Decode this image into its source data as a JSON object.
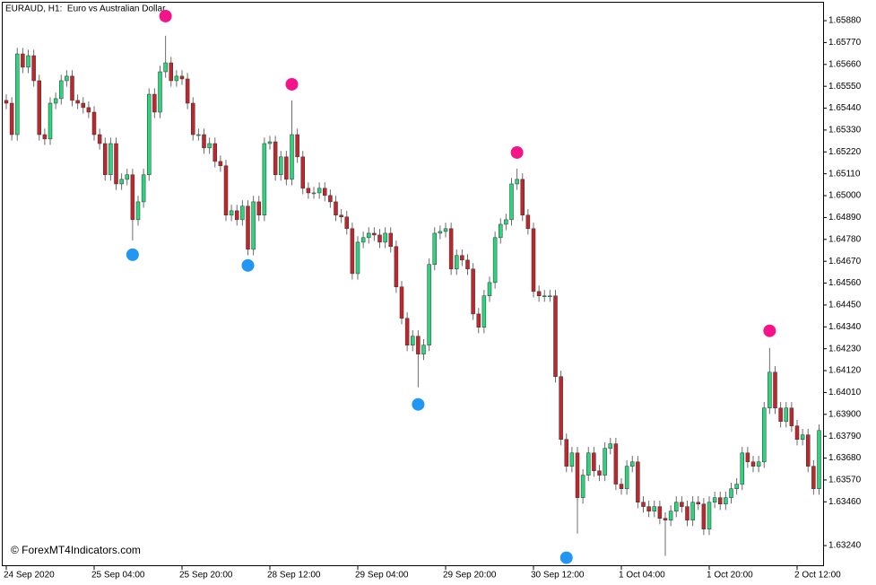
{
  "chart_data": {
    "type": "candlestick",
    "title": "EURAUD, H1:  Euro vs Australian Dollar",
    "watermark": "© ForexMT4Indicators.com",
    "categories": [
      "24 Sep 2020",
      null,
      null,
      null,
      null,
      null,
      null,
      null,
      null,
      null,
      null,
      null,
      null,
      null,
      null,
      null,
      "25 Sep 04:00",
      null,
      null,
      null,
      null,
      null,
      null,
      null,
      null,
      null,
      null,
      null,
      null,
      null,
      null,
      null,
      "25 Sep 20:00",
      null,
      null,
      null,
      null,
      null,
      null,
      null,
      null,
      null,
      null,
      null,
      null,
      null,
      null,
      null,
      "28 Sep 12:00",
      null,
      null,
      null,
      null,
      null,
      null,
      null,
      null,
      null,
      null,
      null,
      null,
      null,
      null,
      null,
      "29 Sep 04:00",
      null,
      null,
      null,
      null,
      null,
      null,
      null,
      null,
      null,
      null,
      null,
      null,
      null,
      null,
      null,
      "29 Sep 20:00",
      null,
      null,
      null,
      null,
      null,
      null,
      null,
      null,
      null,
      null,
      null,
      null,
      null,
      null,
      null,
      "30 Sep 12:00",
      null,
      null,
      null,
      null,
      null,
      null,
      null,
      null,
      null,
      null,
      null,
      null,
      null,
      null,
      null,
      "1 Oct 04:00",
      null,
      null,
      null,
      null,
      null,
      null,
      null,
      null,
      null,
      null,
      null,
      null,
      null,
      null,
      null,
      "1 Oct 20:00",
      null,
      null,
      null,
      null,
      null,
      null,
      null,
      null,
      null,
      null,
      null,
      null,
      null,
      null,
      null,
      "2 Oct 12:00",
      null,
      null,
      null,
      null
    ],
    "open": [
      1.65479,
      1.65465,
      1.65307,
      1.65713,
      1.65646,
      1.65704,
      1.65578,
      1.65307,
      1.65285,
      1.65465,
      1.65488,
      1.65578,
      1.65601,
      1.65479,
      1.65465,
      1.65443,
      1.6542,
      1.65307,
      1.65262,
      1.65105,
      1.65262,
      1.65059,
      1.65082,
      1.65105,
      1.64879,
      1.64969,
      1.65105,
      1.6551,
      1.6542,
      1.65623,
      1.65668,
      1.65578,
      1.65601,
      1.65587,
      1.65465,
      1.65307,
      1.65307,
      1.6524,
      1.65262,
      1.65172,
      1.6515,
      1.64902,
      1.64924,
      1.64879,
      1.64947,
      1.6473,
      1.64969,
      1.64902,
      1.65262,
      1.65271,
      1.65105,
      1.65195,
      1.65082,
      1.65307,
      1.65195,
      1.65037,
      1.65014,
      1.65014,
      1.65037,
      1.65001,
      1.64969,
      1.64902,
      1.64893,
      1.64834,
      1.64608,
      1.64766,
      1.64789,
      1.64811,
      1.64802,
      1.64766,
      1.64811,
      1.64744,
      1.64541,
      1.64383,
      1.64248,
      1.64293,
      1.64203,
      1.64248,
      1.64654,
      1.64811,
      1.6482,
      1.64834,
      1.64631,
      1.64699,
      1.64676,
      1.64631,
      1.64405,
      1.64338,
      1.64496,
      1.64563,
      1.64789,
      1.64856,
      1.64879,
      1.65059,
      1.65082,
      1.64902,
      1.64834,
      1.64518,
      1.64496,
      1.64496,
      1.64496,
      1.6409,
      1.63774,
      1.63639,
      1.63706,
      1.63481,
      1.63594,
      1.63706,
      1.63616,
      1.63594,
      1.63729,
      1.63752,
      1.63549,
      1.63526,
      1.63639,
      1.63661,
      1.63458,
      1.63436,
      1.63413,
      1.63436,
      1.63377,
      1.63368,
      1.63413,
      1.63458,
      1.63436,
      1.63368,
      1.63458,
      1.63449,
      1.63323,
      1.63458,
      1.63481,
      1.63449,
      1.63481,
      1.63526,
      1.63549,
      1.63706,
      1.63661,
      1.63639,
      1.63661,
      1.63932,
      1.64112,
      1.63932,
      1.63864,
      1.63932,
      1.63842,
      1.63774,
      1.63797,
      1.63639,
      1.63526
    ],
    "high": [
      1.65509,
      1.65495,
      1.65743,
      1.65743,
      1.65734,
      1.65734,
      1.65608,
      1.65337,
      1.65495,
      1.65518,
      1.65608,
      1.65631,
      1.65631,
      1.65509,
      1.65495,
      1.65473,
      1.6545,
      1.65337,
      1.65292,
      1.65292,
      1.65292,
      1.65112,
      1.65135,
      1.65135,
      1.64999,
      1.65135,
      1.6554,
      1.6554,
      1.65653,
      1.65804,
      1.65698,
      1.65631,
      1.65631,
      1.65617,
      1.65495,
      1.65337,
      1.65337,
      1.65292,
      1.65292,
      1.65202,
      1.6518,
      1.64954,
      1.64954,
      1.64977,
      1.64977,
      1.64999,
      1.64999,
      1.65292,
      1.65301,
      1.65301,
      1.65225,
      1.65225,
      1.65479,
      1.65337,
      1.65225,
      1.65067,
      1.65044,
      1.65067,
      1.65067,
      1.65031,
      1.64999,
      1.64932,
      1.64923,
      1.64864,
      1.64796,
      1.64819,
      1.64841,
      1.64841,
      1.64832,
      1.64841,
      1.64841,
      1.64774,
      1.64571,
      1.64413,
      1.64323,
      1.64323,
      1.64278,
      1.64684,
      1.64841,
      1.6485,
      1.64864,
      1.64864,
      1.64729,
      1.64729,
      1.64706,
      1.64661,
      1.64435,
      1.64526,
      1.64593,
      1.64819,
      1.64886,
      1.64909,
      1.65089,
      1.65136,
      1.65112,
      1.64932,
      1.64864,
      1.64548,
      1.64526,
      1.64526,
      1.64526,
      1.6412,
      1.63804,
      1.63736,
      1.63736,
      1.63624,
      1.63736,
      1.63736,
      1.63646,
      1.63759,
      1.63782,
      1.63782,
      1.63579,
      1.63669,
      1.63691,
      1.63691,
      1.63488,
      1.63466,
      1.63466,
      1.63466,
      1.63407,
      1.63443,
      1.63488,
      1.63488,
      1.63466,
      1.63488,
      1.63488,
      1.63479,
      1.63488,
      1.63511,
      1.63511,
      1.63511,
      1.63556,
      1.63579,
      1.63736,
      1.63736,
      1.63691,
      1.63691,
      1.63962,
      1.64234,
      1.64142,
      1.63962,
      1.63962,
      1.63962,
      1.63872,
      1.63827,
      1.63827,
      1.63669,
      1.63849
    ],
    "low": [
      1.65435,
      1.65277,
      1.65277,
      1.65616,
      1.65616,
      1.65548,
      1.65277,
      1.65255,
      1.65255,
      1.65435,
      1.65458,
      1.65548,
      1.65449,
      1.65435,
      1.65413,
      1.6539,
      1.65277,
      1.65232,
      1.65075,
      1.65075,
      1.65029,
      1.65029,
      1.65052,
      1.64775,
      1.64849,
      1.64939,
      1.65075,
      1.6539,
      1.6539,
      1.65593,
      1.65548,
      1.65548,
      1.65557,
      1.65435,
      1.65277,
      1.65277,
      1.6521,
      1.6521,
      1.65142,
      1.6512,
      1.64872,
      1.64872,
      1.64849,
      1.64849,
      1.647,
      1.647,
      1.64872,
      1.64872,
      1.65232,
      1.65075,
      1.65075,
      1.65052,
      1.65052,
      1.65165,
      1.65007,
      1.64984,
      1.64984,
      1.64984,
      1.64971,
      1.64939,
      1.64872,
      1.64863,
      1.64804,
      1.64578,
      1.64578,
      1.64736,
      1.64759,
      1.64772,
      1.64736,
      1.64736,
      1.64714,
      1.64511,
      1.64353,
      1.64218,
      1.64218,
      1.64036,
      1.64173,
      1.64218,
      1.64624,
      1.64781,
      1.6479,
      1.64601,
      1.64601,
      1.64646,
      1.64601,
      1.64375,
      1.64308,
      1.64308,
      1.64466,
      1.64533,
      1.64759,
      1.64826,
      1.64849,
      1.65029,
      1.64872,
      1.64804,
      1.64488,
      1.64466,
      1.64466,
      1.64466,
      1.6406,
      1.63744,
      1.63609,
      1.63609,
      1.633,
      1.63451,
      1.63564,
      1.63586,
      1.63564,
      1.63564,
      1.63699,
      1.63519,
      1.63496,
      1.63496,
      1.63609,
      1.63428,
      1.63406,
      1.63383,
      1.63383,
      1.63347,
      1.63188,
      1.63338,
      1.63383,
      1.63406,
      1.63338,
      1.63338,
      1.63419,
      1.63293,
      1.63293,
      1.63428,
      1.63419,
      1.63419,
      1.63451,
      1.63496,
      1.63519,
      1.63631,
      1.63609,
      1.63609,
      1.63631,
      1.63902,
      1.63902,
      1.63834,
      1.63834,
      1.63812,
      1.63744,
      1.63744,
      1.63609,
      1.63496,
      1.63496
    ],
    "close": [
      1.65465,
      1.65307,
      1.65713,
      1.65646,
      1.65704,
      1.65578,
      1.65307,
      1.65285,
      1.65465,
      1.65488,
      1.65578,
      1.65601,
      1.65479,
      1.65465,
      1.65443,
      1.6542,
      1.65307,
      1.65262,
      1.65105,
      1.65262,
      1.65059,
      1.65082,
      1.65105,
      1.64879,
      1.64969,
      1.65105,
      1.6551,
      1.6542,
      1.65623,
      1.65668,
      1.65578,
      1.65601,
      1.65587,
      1.65465,
      1.65307,
      1.65307,
      1.6524,
      1.65262,
      1.65172,
      1.6515,
      1.64902,
      1.64924,
      1.64879,
      1.64947,
      1.6473,
      1.64969,
      1.64902,
      1.65262,
      1.65271,
      1.65105,
      1.65195,
      1.65082,
      1.65307,
      1.65195,
      1.65037,
      1.65014,
      1.65014,
      1.65037,
      1.65001,
      1.64969,
      1.64902,
      1.64893,
      1.64834,
      1.64608,
      1.64766,
      1.64789,
      1.64811,
      1.64802,
      1.64766,
      1.64811,
      1.64744,
      1.64541,
      1.64383,
      1.64248,
      1.64293,
      1.64203,
      1.64248,
      1.64654,
      1.64811,
      1.6482,
      1.64834,
      1.64631,
      1.64699,
      1.64676,
      1.64631,
      1.64405,
      1.64338,
      1.64496,
      1.64563,
      1.64789,
      1.64856,
      1.64879,
      1.65059,
      1.65082,
      1.64902,
      1.64834,
      1.64518,
      1.64496,
      1.64496,
      1.64496,
      1.6409,
      1.63774,
      1.63639,
      1.63706,
      1.63481,
      1.63594,
      1.63706,
      1.63616,
      1.63594,
      1.63729,
      1.63752,
      1.63549,
      1.63526,
      1.63639,
      1.63661,
      1.63458,
      1.63436,
      1.63413,
      1.63436,
      1.63377,
      1.63368,
      1.63413,
      1.63458,
      1.63436,
      1.63368,
      1.63458,
      1.63449,
      1.63323,
      1.63458,
      1.63481,
      1.63449,
      1.63481,
      1.63526,
      1.63549,
      1.63706,
      1.63661,
      1.63639,
      1.63661,
      1.63932,
      1.64112,
      1.63932,
      1.63864,
      1.63932,
      1.63842,
      1.63774,
      1.63797,
      1.63639,
      1.63526,
      1.63819
    ],
    "up_color": "#2bd47d",
    "down_color": "#c0262b",
    "upper_dots": {
      "color": "#f5138a",
      "values": [
        null,
        null,
        null,
        null,
        null,
        null,
        null,
        null,
        null,
        null,
        null,
        null,
        null,
        null,
        null,
        null,
        null,
        null,
        null,
        null,
        null,
        null,
        null,
        null,
        null,
        null,
        null,
        null,
        null,
        1.65903,
        null,
        null,
        null,
        null,
        null,
        null,
        null,
        null,
        null,
        null,
        null,
        null,
        null,
        null,
        null,
        null,
        null,
        null,
        null,
        null,
        null,
        null,
        1.6556,
        null,
        null,
        null,
        null,
        null,
        null,
        null,
        null,
        null,
        null,
        null,
        null,
        null,
        null,
        null,
        null,
        null,
        null,
        null,
        null,
        null,
        null,
        null,
        null,
        null,
        null,
        null,
        null,
        null,
        null,
        null,
        null,
        null,
        null,
        null,
        null,
        null,
        null,
        null,
        null,
        1.65217,
        null,
        null,
        null,
        null,
        null,
        null,
        null,
        null,
        null,
        null,
        null,
        null,
        null,
        null,
        null,
        null,
        null,
        null,
        null,
        null,
        null,
        null,
        null,
        null,
        null,
        null,
        null,
        null,
        null,
        null,
        null,
        null,
        null,
        null,
        null,
        null,
        null,
        null,
        null,
        null,
        null,
        null,
        null,
        null,
        null,
        1.6432,
        null,
        null,
        null,
        null,
        null,
        null,
        null,
        null,
        null
      ]
    },
    "lower_dots": {
      "color": "#2196f3",
      "values": [
        null,
        null,
        null,
        null,
        null,
        null,
        null,
        null,
        null,
        null,
        null,
        null,
        null,
        null,
        null,
        null,
        null,
        null,
        null,
        null,
        null,
        null,
        null,
        1.64703,
        null,
        null,
        null,
        null,
        null,
        null,
        null,
        null,
        null,
        null,
        null,
        null,
        null,
        null,
        null,
        null,
        null,
        null,
        null,
        null,
        1.64649,
        null,
        null,
        null,
        null,
        null,
        null,
        null,
        null,
        null,
        null,
        null,
        null,
        null,
        null,
        null,
        null,
        null,
        null,
        null,
        null,
        null,
        null,
        null,
        null,
        null,
        null,
        null,
        null,
        null,
        null,
        1.6395,
        null,
        null,
        null,
        null,
        null,
        null,
        null,
        null,
        null,
        null,
        null,
        null,
        null,
        null,
        null,
        null,
        null,
        null,
        null,
        null,
        null,
        null,
        null,
        null,
        null,
        null,
        1.63179,
        null,
        null,
        null,
        null,
        null,
        null,
        null,
        null,
        null,
        null,
        null,
        null,
        null,
        null,
        null,
        null,
        null,
        null,
        null,
        null,
        null,
        null,
        null,
        null,
        null,
        null,
        null,
        null,
        null,
        null,
        null,
        null,
        null,
        null,
        null,
        null,
        null,
        null,
        null,
        null,
        null,
        null,
        null,
        null,
        null,
        null
      ]
    },
    "ylim": [
      1.63141,
      1.65984
    ],
    "yticks": [
      {
        "value": 1.6588,
        "label": "1.65880"
      },
      {
        "value": 1.6577,
        "label": "1.65770"
      },
      {
        "value": 1.6566,
        "label": "1.65660"
      },
      {
        "value": 1.6555,
        "label": "1.65550"
      },
      {
        "value": 1.6544,
        "label": "1.65440"
      },
      {
        "value": 1.6533,
        "label": "1.65330"
      },
      {
        "value": 1.6522,
        "label": "1.65220"
      },
      {
        "value": 1.6511,
        "label": "1.65110"
      },
      {
        "value": 1.65,
        "label": "1.65000"
      },
      {
        "value": 1.6489,
        "label": "1.64890"
      },
      {
        "value": 1.6478,
        "label": "1.64780"
      },
      {
        "value": 1.6467,
        "label": "1.64670"
      },
      {
        "value": 1.6456,
        "label": "1.64560"
      },
      {
        "value": 1.6445,
        "label": "1.64450"
      },
      {
        "value": 1.6434,
        "label": "1.64340"
      },
      {
        "value": 1.6423,
        "label": "1.64230"
      },
      {
        "value": 1.6412,
        "label": "1.64120"
      },
      {
        "value": 1.6401,
        "label": "1.64010"
      },
      {
        "value": 1.639,
        "label": "1.63900"
      },
      {
        "value": 1.6379,
        "label": "1.63790"
      },
      {
        "value": 1.6368,
        "label": "1.63680"
      },
      {
        "value": 1.6357,
        "label": "1.63570"
      },
      {
        "value": 1.6346,
        "label": "1.63460"
      },
      {
        "value": 1.6324,
        "label": "1.63240"
      }
    ]
  }
}
